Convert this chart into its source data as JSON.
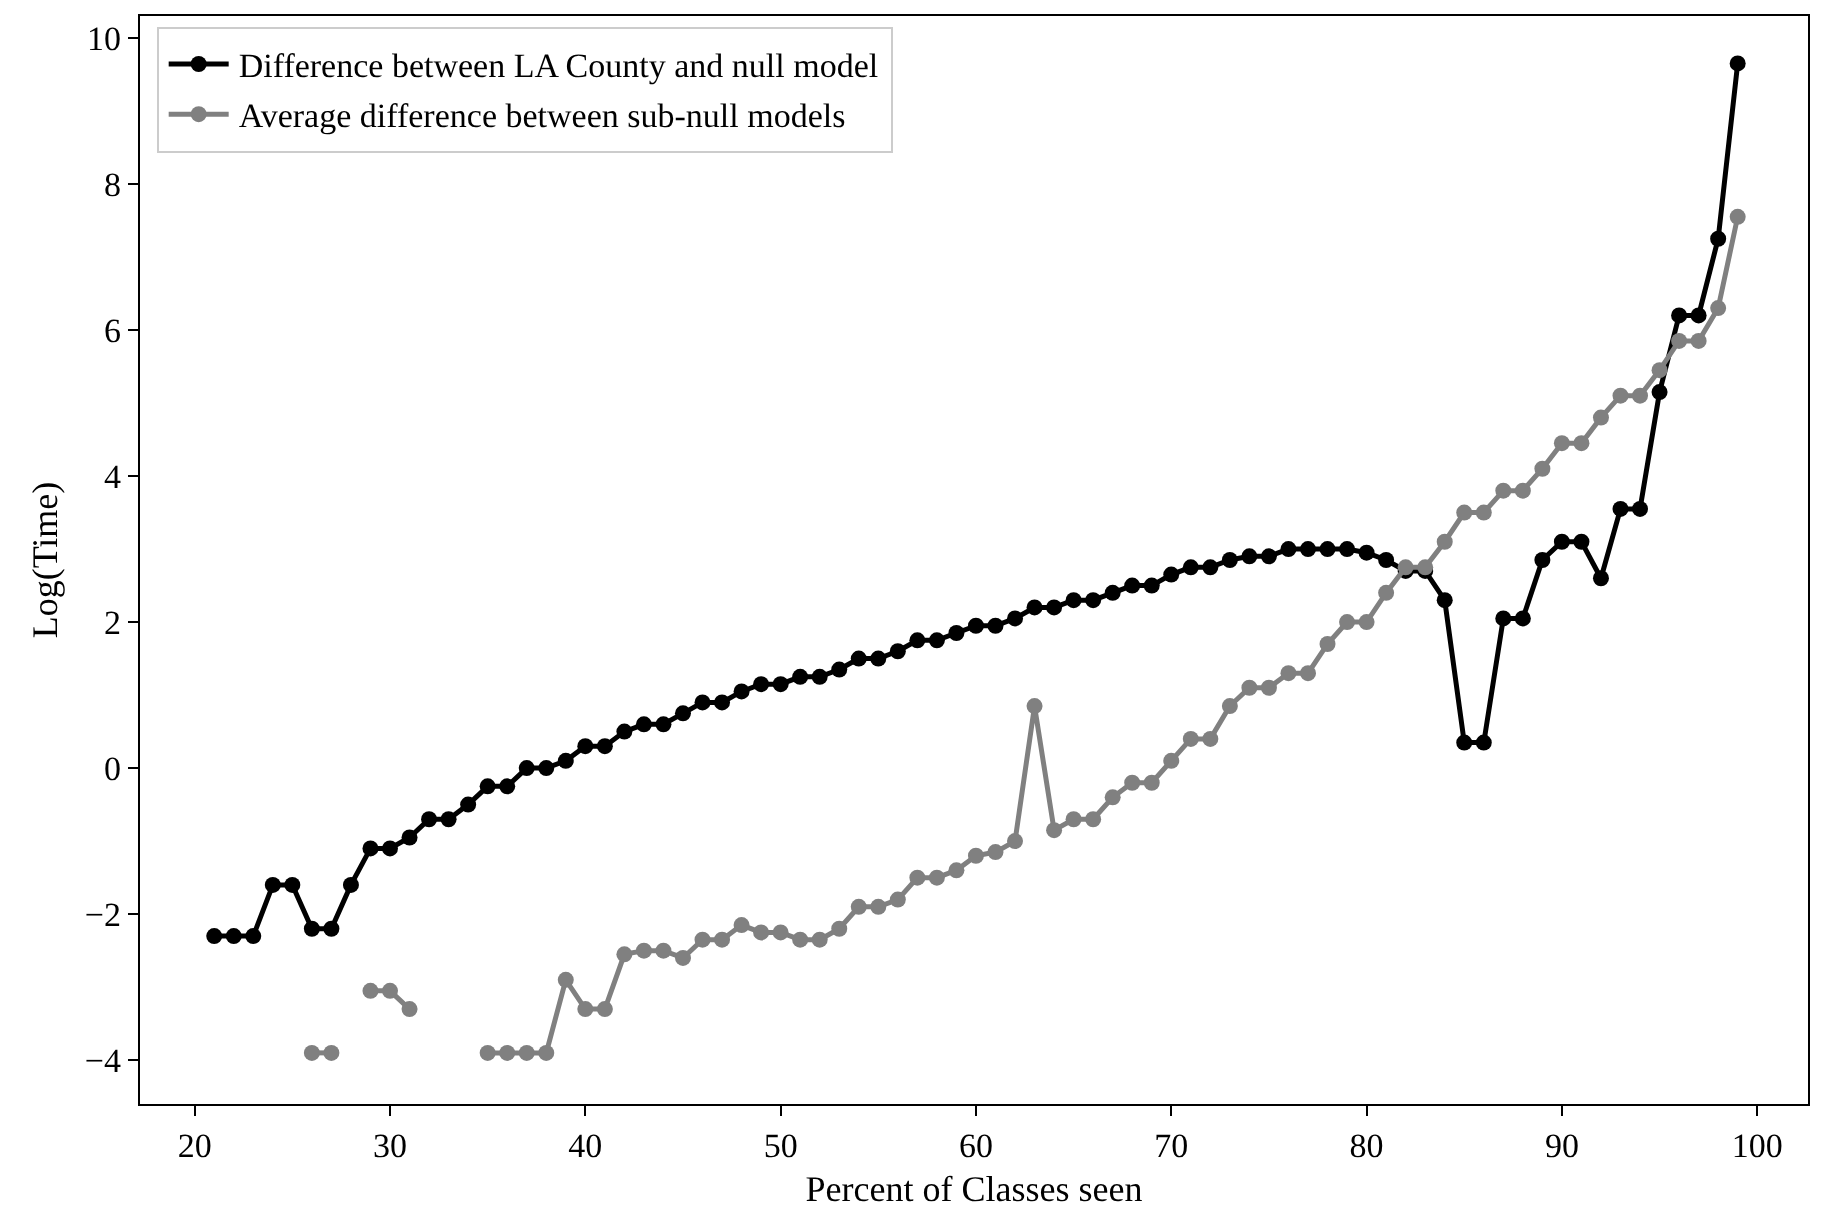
{
  "chart_data": {
    "type": "line",
    "xlabel": "Percent of Classes seen",
    "ylabel": "Log(Time)",
    "xlim": [
      17.2,
      102.6
    ],
    "xticks": [
      20,
      30,
      40,
      50,
      60,
      70,
      80,
      90,
      100
    ],
    "ylim": [
      -4.6,
      10.3
    ],
    "yticks": [
      -4,
      -2,
      0,
      2,
      4,
      6,
      8,
      10
    ],
    "legend": "top left",
    "marker": "circle",
    "line_style": "solid",
    "series": [
      {
        "name": "Difference between LA County and null model",
        "color": "#000000",
        "x": [
          21,
          22,
          23,
          24,
          25,
          26,
          27,
          28,
          29,
          30,
          31,
          32,
          33,
          34,
          35,
          36,
          37,
          38,
          39,
          40,
          41,
          42,
          43,
          44,
          45,
          46,
          47,
          48,
          49,
          50,
          51,
          52,
          53,
          54,
          55,
          56,
          57,
          58,
          59,
          60,
          61,
          62,
          63,
          64,
          65,
          66,
          67,
          68,
          69,
          70,
          71,
          72,
          73,
          74,
          75,
          76,
          77,
          78,
          79,
          80,
          81,
          82,
          83,
          84,
          85,
          86,
          87,
          88,
          89,
          90,
          91,
          92,
          93,
          94,
          95,
          96,
          97,
          98,
          99
        ],
        "values": [
          -2.3,
          -2.3,
          -2.3,
          -1.6,
          -1.6,
          -2.2,
          -2.2,
          -1.6,
          -1.1,
          -1.1,
          -0.95,
          -0.7,
          -0.7,
          -0.5,
          -0.25,
          -0.25,
          0,
          0,
          0.1,
          0.3,
          0.3,
          0.5,
          0.6,
          0.6,
          0.75,
          0.9,
          0.9,
          1.05,
          1.15,
          1.15,
          1.25,
          1.25,
          1.35,
          1.5,
          1.5,
          1.6,
          1.75,
          1.75,
          1.85,
          1.95,
          1.95,
          2.05,
          2.2,
          2.2,
          2.3,
          2.3,
          2.4,
          2.5,
          2.5,
          2.65,
          2.75,
          2.75,
          2.85,
          2.9,
          2.9,
          3.0,
          3.0,
          3.0,
          3.0,
          2.95,
          2.85,
          2.7,
          2.7,
          2.3,
          0.35,
          0.35,
          2.05,
          2.05,
          2.85,
          3.1,
          3.1,
          2.6,
          3.55,
          3.55,
          5.15,
          6.2,
          6.2,
          7.25,
          9.65
        ]
      },
      {
        "name": "Average difference between sub-null models",
        "color": "#808080",
        "x": [
          26,
          27,
          28,
          29,
          30,
          31,
          32,
          33,
          34,
          35,
          36,
          37,
          38,
          39,
          40,
          41,
          42,
          43,
          44,
          45,
          46,
          47,
          48,
          49,
          50,
          51,
          52,
          53,
          54,
          55,
          56,
          57,
          58,
          59,
          60,
          61,
          62,
          63,
          64,
          65,
          66,
          67,
          68,
          69,
          70,
          71,
          72,
          73,
          74,
          75,
          76,
          77,
          78,
          79,
          80,
          81,
          82,
          83,
          84,
          85,
          86,
          87,
          88,
          89,
          90,
          91,
          92,
          93,
          94,
          95,
          96,
          97,
          98,
          99
        ],
        "values": [
          -3.9,
          -3.9,
          null,
          -3.05,
          -3.05,
          -3.3,
          null,
          null,
          null,
          -3.9,
          -3.9,
          -3.9,
          -3.9,
          -2.9,
          -3.3,
          -3.3,
          -2.55,
          -2.5,
          -2.5,
          -2.6,
          -2.35,
          -2.35,
          -2.15,
          -2.25,
          -2.25,
          -2.35,
          -2.35,
          -2.2,
          -1.9,
          -1.9,
          -1.8,
          -1.5,
          -1.5,
          -1.4,
          -1.2,
          -1.15,
          -1.0,
          0.85,
          -0.85,
          -0.7,
          -0.7,
          -0.4,
          -0.2,
          -0.2,
          0.1,
          0.4,
          0.4,
          0.85,
          1.1,
          1.1,
          1.3,
          1.3,
          1.7,
          2.0,
          2.0,
          2.4,
          2.75,
          2.75,
          3.1,
          3.5,
          3.5,
          3.8,
          3.8,
          4.1,
          4.45,
          4.45,
          4.8,
          5.1,
          5.1,
          5.45,
          5.85,
          5.85,
          6.3,
          7.55
        ]
      }
    ]
  }
}
